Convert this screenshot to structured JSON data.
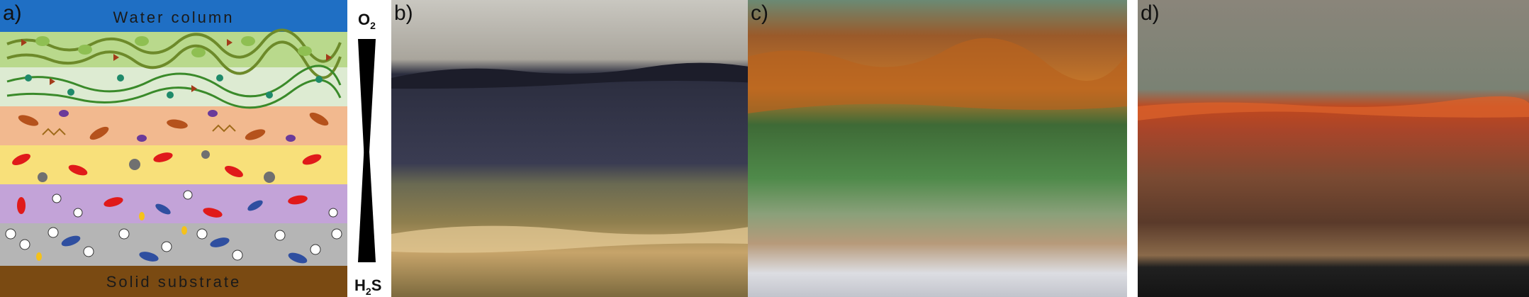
{
  "panels": [
    {
      "label": "a)"
    },
    {
      "label": "b)"
    },
    {
      "label": "c)"
    },
    {
      "label": "d)"
    }
  ],
  "diagram": {
    "top_label": "Water column",
    "bottom_label": "Solid substrate",
    "oxygen_label": "O",
    "oxygen_sub": "2",
    "sulfide_label": "H",
    "sulfide_sub": "2",
    "sulfide_suffix": "S",
    "colors": {
      "water": "#1f6fc4",
      "substrate": "#7a4a12",
      "layer1": "#b9d98c",
      "layer2": "#ddebd2",
      "layer3": "#f2b98f",
      "layer4": "#f8e07a",
      "layer5": "#c3a3d8",
      "layer6": "#b5b5b5"
    }
  }
}
